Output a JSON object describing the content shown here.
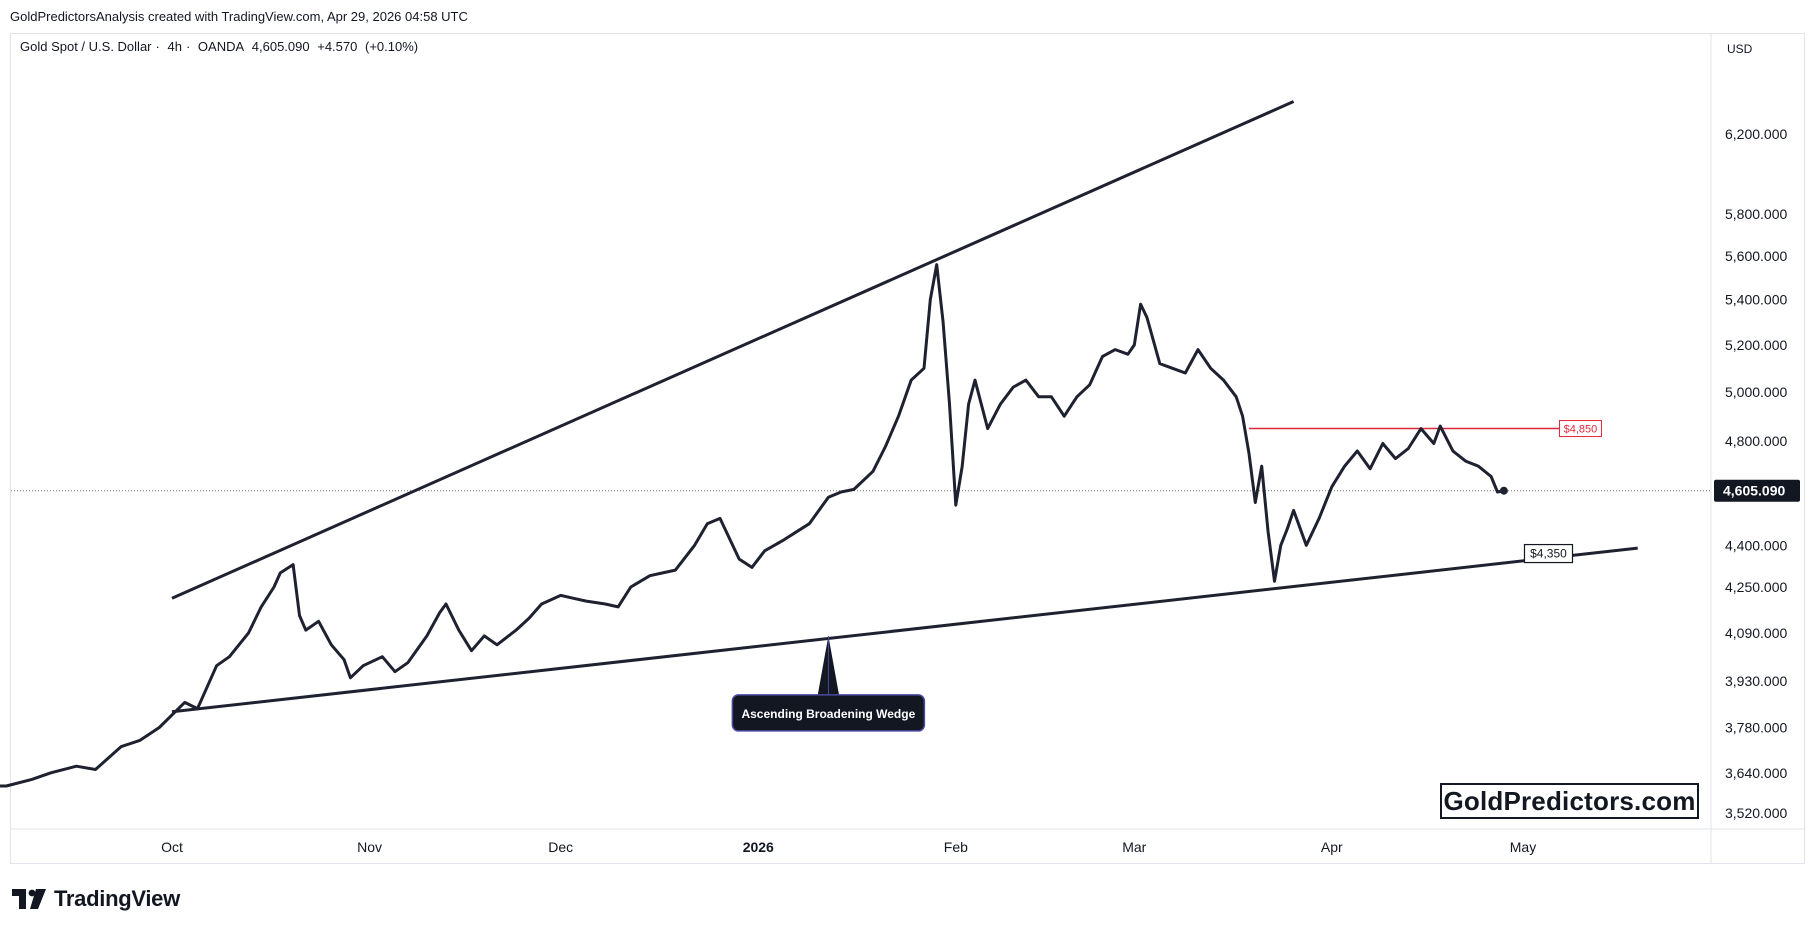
{
  "header": {
    "author_line": "GoldPredictorsAnalysis created with TradingView.com, Apr 29, 2026 04:58 UTC"
  },
  "symbol": {
    "name": "Gold Spot / U.S. Dollar",
    "interval": "4h",
    "source": "OANDA",
    "last": "4,605.090",
    "change": "+4.570",
    "change_pct": "(+0.10%)"
  },
  "axis": {
    "currency": "USD"
  },
  "annotations": {
    "resistance_label": "$4,850",
    "support_label": "$4,350",
    "pattern_label": "Ascending Broadening Wedge"
  },
  "watermark": "GoldPredictors.com",
  "brand": "TradingView",
  "colors": {
    "price_line": "#1e2230",
    "trendline": "#1e2230",
    "resistance": "#e0283c",
    "label_bg": "#131722"
  },
  "chart_data": {
    "type": "line",
    "title": "",
    "xlabel": "",
    "ylabel": "",
    "y_scale": "log",
    "ylim": [
      3470,
      6700
    ],
    "x_ticks": [
      {
        "label": "Oct",
        "date": "2025-10-01"
      },
      {
        "label": "Nov",
        "date": "2025-11-01"
      },
      {
        "label": "Dec",
        "date": "2025-12-01"
      },
      {
        "label": "2026",
        "date": "2026-01-01",
        "bold": true
      },
      {
        "label": "Feb",
        "date": "2026-02-01"
      },
      {
        "label": "Mar",
        "date": "2026-03-01"
      },
      {
        "label": "Apr",
        "date": "2026-04-01"
      },
      {
        "label": "May",
        "date": "2026-05-01"
      }
    ],
    "y_ticks": [
      {
        "value": 6200,
        "label": "6,200.000"
      },
      {
        "value": 5800,
        "label": "5,800.000"
      },
      {
        "value": 5600,
        "label": "5,600.000"
      },
      {
        "value": 5400,
        "label": "5,400.000"
      },
      {
        "value": 5200,
        "label": "5,200.000"
      },
      {
        "value": 5000,
        "label": "5,000.000"
      },
      {
        "value": 4800,
        "label": "4,800.000"
      },
      {
        "value": 4400,
        "label": "4,400.000"
      },
      {
        "value": 4250,
        "label": "4,250.000"
      },
      {
        "value": 4090,
        "label": "4,090.000"
      },
      {
        "value": 3930,
        "label": "3,930.000"
      },
      {
        "value": 3780,
        "label": "3,780.000"
      },
      {
        "value": 3640,
        "label": "3,640.000"
      },
      {
        "value": 3520,
        "label": "3,520.000"
      }
    ],
    "current_price": {
      "value": 4605.09,
      "label": "4,605.090"
    },
    "series": [
      {
        "values": [
          [
            "2025-09-01",
            3540
          ],
          [
            "2025-09-02",
            3600
          ],
          [
            "2025-09-05",
            3600
          ],
          [
            "2025-09-09",
            3620
          ],
          [
            "2025-09-12",
            3640
          ],
          [
            "2025-09-16",
            3660
          ],
          [
            "2025-09-19",
            3650
          ],
          [
            "2025-09-23",
            3720
          ],
          [
            "2025-09-26",
            3740
          ],
          [
            "2025-09-29",
            3780
          ],
          [
            "2025-10-01",
            3820
          ],
          [
            "2025-10-03",
            3860
          ],
          [
            "2025-10-05",
            3840
          ],
          [
            "2025-10-08",
            3980
          ],
          [
            "2025-10-10",
            4010
          ],
          [
            "2025-10-13",
            4090
          ],
          [
            "2025-10-15",
            4180
          ],
          [
            "2025-10-17",
            4250
          ],
          [
            "2025-10-18",
            4300
          ],
          [
            "2025-10-20",
            4330
          ],
          [
            "2025-10-21",
            4150
          ],
          [
            "2025-10-22",
            4100
          ],
          [
            "2025-10-24",
            4130
          ],
          [
            "2025-10-26",
            4050
          ],
          [
            "2025-10-28",
            4000
          ],
          [
            "2025-10-29",
            3940
          ],
          [
            "2025-10-31",
            3980
          ],
          [
            "2025-11-03",
            4010
          ],
          [
            "2025-11-05",
            3960
          ],
          [
            "2025-11-07",
            3990
          ],
          [
            "2025-11-10",
            4080
          ],
          [
            "2025-11-12",
            4160
          ],
          [
            "2025-11-13",
            4190
          ],
          [
            "2025-11-15",
            4100
          ],
          [
            "2025-11-17",
            4030
          ],
          [
            "2025-11-19",
            4080
          ],
          [
            "2025-11-21",
            4050
          ],
          [
            "2025-11-24",
            4100
          ],
          [
            "2025-11-26",
            4140
          ],
          [
            "2025-11-28",
            4190
          ],
          [
            "2025-12-01",
            4220
          ],
          [
            "2025-12-03",
            4210
          ],
          [
            "2025-12-05",
            4200
          ],
          [
            "2025-12-08",
            4190
          ],
          [
            "2025-12-10",
            4180
          ],
          [
            "2025-12-12",
            4250
          ],
          [
            "2025-12-15",
            4290
          ],
          [
            "2025-12-17",
            4300
          ],
          [
            "2025-12-19",
            4310
          ],
          [
            "2025-12-22",
            4400
          ],
          [
            "2025-12-24",
            4480
          ],
          [
            "2025-12-26",
            4500
          ],
          [
            "2025-12-29",
            4350
          ],
          [
            "2025-12-31",
            4320
          ],
          [
            "2026-01-02",
            4380
          ],
          [
            "2026-01-05",
            4420
          ],
          [
            "2026-01-07",
            4450
          ],
          [
            "2026-01-09",
            4480
          ],
          [
            "2026-01-12",
            4580
          ],
          [
            "2026-01-14",
            4600
          ],
          [
            "2026-01-16",
            4610
          ],
          [
            "2026-01-19",
            4680
          ],
          [
            "2026-01-21",
            4780
          ],
          [
            "2026-01-23",
            4900
          ],
          [
            "2026-01-25",
            5050
          ],
          [
            "2026-01-27",
            5100
          ],
          [
            "2026-01-28",
            5400
          ],
          [
            "2026-01-29",
            5560
          ],
          [
            "2026-01-30",
            5300
          ],
          [
            "2026-01-31",
            4950
          ],
          [
            "2026-02-01",
            4550
          ],
          [
            "2026-02-02",
            4700
          ],
          [
            "2026-02-03",
            4950
          ],
          [
            "2026-02-04",
            5050
          ],
          [
            "2026-02-06",
            4850
          ],
          [
            "2026-02-08",
            4950
          ],
          [
            "2026-02-10",
            5020
          ],
          [
            "2026-02-12",
            5050
          ],
          [
            "2026-02-14",
            4980
          ],
          [
            "2026-02-16",
            4980
          ],
          [
            "2026-02-18",
            4900
          ],
          [
            "2026-02-20",
            4980
          ],
          [
            "2026-02-22",
            5030
          ],
          [
            "2026-02-24",
            5150
          ],
          [
            "2026-02-26",
            5180
          ],
          [
            "2026-02-28",
            5160
          ],
          [
            "2026-03-01",
            5200
          ],
          [
            "2026-03-02",
            5380
          ],
          [
            "2026-03-03",
            5320
          ],
          [
            "2026-03-05",
            5120
          ],
          [
            "2026-03-07",
            5100
          ],
          [
            "2026-03-09",
            5080
          ],
          [
            "2026-03-11",
            5180
          ],
          [
            "2026-03-13",
            5100
          ],
          [
            "2026-03-15",
            5050
          ],
          [
            "2026-03-17",
            4980
          ],
          [
            "2026-03-18",
            4900
          ],
          [
            "2026-03-19",
            4750
          ],
          [
            "2026-03-20",
            4560
          ],
          [
            "2026-03-21",
            4700
          ],
          [
            "2026-03-22",
            4450
          ],
          [
            "2026-03-23",
            4270
          ],
          [
            "2026-03-24",
            4400
          ],
          [
            "2026-03-25",
            4460
          ],
          [
            "2026-03-26",
            4530
          ],
          [
            "2026-03-28",
            4400
          ],
          [
            "2026-03-30",
            4500
          ],
          [
            "2026-04-01",
            4620
          ],
          [
            "2026-04-03",
            4700
          ],
          [
            "2026-04-05",
            4760
          ],
          [
            "2026-04-07",
            4690
          ],
          [
            "2026-04-09",
            4790
          ],
          [
            "2026-04-11",
            4730
          ],
          [
            "2026-04-13",
            4770
          ],
          [
            "2026-04-15",
            4850
          ],
          [
            "2026-04-17",
            4790
          ],
          [
            "2026-04-18",
            4860
          ],
          [
            "2026-04-20",
            4760
          ],
          [
            "2026-04-22",
            4720
          ],
          [
            "2026-04-24",
            4700
          ],
          [
            "2026-04-26",
            4660
          ],
          [
            "2026-04-27",
            4600
          ],
          [
            "2026-04-28",
            4605
          ]
        ]
      }
    ],
    "trendlines": [
      {
        "name": "upper",
        "from": [
          "2025-10-01",
          4210
        ],
        "to": [
          "2026-03-26",
          6370
        ]
      },
      {
        "name": "lower",
        "from": [
          "2025-10-01",
          3830
        ],
        "to": [
          "2026-05-19",
          4390
        ]
      }
    ],
    "levels": [
      {
        "value": 4850,
        "from": "2026-03-19",
        "to": "2026-05-13",
        "label": "$4,850",
        "color": "#e0283c"
      }
    ],
    "callouts": [
      {
        "label": "$4,350",
        "at": [
          "2026-05-05",
          4370
        ]
      },
      {
        "label": "Ascending Broadening Wedge",
        "at": [
          "2026-01-12",
          4080
        ]
      }
    ]
  }
}
